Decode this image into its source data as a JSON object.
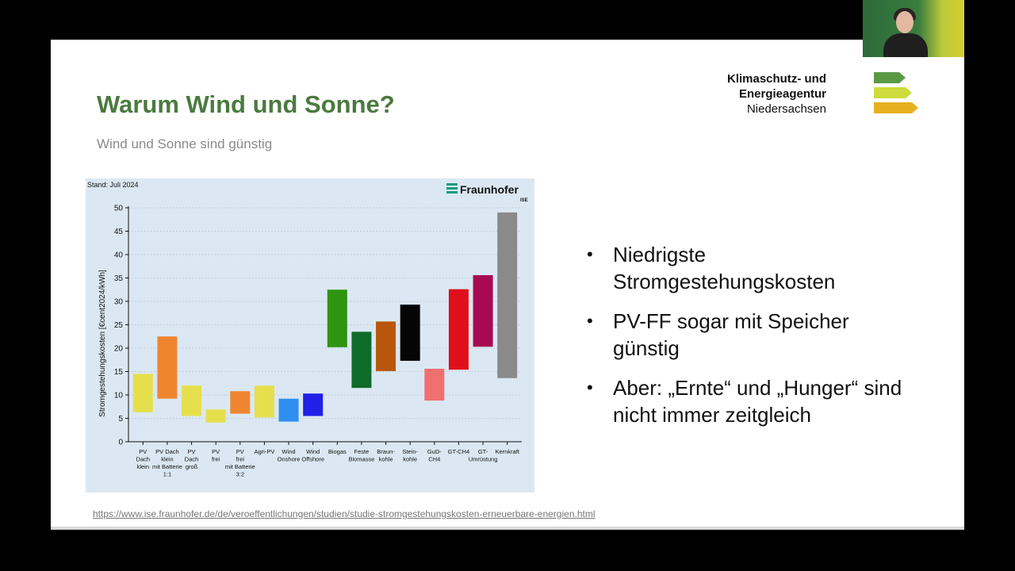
{
  "slide": {
    "title": "Warum Wind und Sonne?",
    "subtitle": "Wind und Sonne sind günstig",
    "logo": {
      "line1": "Klimaschutz- und",
      "line2": "Energieagentur",
      "line3": "Niedersachsen",
      "arrow_colors": [
        "#5a9a47",
        "#cddc3a",
        "#e6b020"
      ]
    },
    "bullets": [
      "Niedrigste Stromgestehungskosten",
      "PV-FF sogar mit Speicher günstig",
      "Aber: „Ernte“ und „Hunger“ sind nicht immer zeitgleich"
    ],
    "source_link": "https://www.ise.fraunhofer.de/de/veroeffentlichungen/studien/studie-stromgestehungskosten-erneuerbare-energien.html"
  },
  "video_thumbnail": {
    "icon": "participant-video-icon"
  },
  "chart_data": {
    "type": "bar",
    "stand": "Stand: Juli 2024",
    "brand": "Fraunhofer",
    "brand_sub": "ISE",
    "ylabel": "Stromgestehungskosten [€cent2024/kWh]",
    "ylim": [
      0,
      50
    ],
    "yticks": [
      0,
      5,
      10,
      15,
      20,
      25,
      30,
      35,
      40,
      45,
      50
    ],
    "grid": true,
    "categories": [
      {
        "label": [
          "PV",
          "Dach",
          "klein"
        ],
        "low": 6.3,
        "high": 14.5,
        "color": "#e6df4c"
      },
      {
        "label": [
          "PV Dach",
          "klein",
          "mit Batterie",
          "1:1"
        ],
        "low": 9.2,
        "high": 22.5,
        "color": "#f08530"
      },
      {
        "label": [
          "PV",
          "Dach",
          "groß"
        ],
        "low": 5.5,
        "high": 12.0,
        "color": "#e6df4c"
      },
      {
        "label": [
          "PV",
          "frei"
        ],
        "low": 4.1,
        "high": 6.9,
        "color": "#e6df4c"
      },
      {
        "label": [
          "PV",
          "frei",
          "mit Batterie",
          "3:2"
        ],
        "low": 6.0,
        "high": 10.8,
        "color": "#f08530"
      },
      {
        "label": [
          "Agri-PV"
        ],
        "low": 5.2,
        "high": 12.0,
        "color": "#e6df4c"
      },
      {
        "label": [
          "Wind",
          "Onshore"
        ],
        "low": 4.3,
        "high": 9.2,
        "color": "#2f8ff0"
      },
      {
        "label": [
          "Wind",
          "Offshore"
        ],
        "low": 5.5,
        "high": 10.3,
        "color": "#2020e8"
      },
      {
        "label": [
          "Biogas"
        ],
        "low": 20.2,
        "high": 32.5,
        "color": "#2f9410"
      },
      {
        "label": [
          "Feste",
          "Biomasse"
        ],
        "low": 11.5,
        "high": 23.5,
        "color": "#0f6b2a"
      },
      {
        "label": [
          "Braun-",
          "kohle"
        ],
        "low": 15.1,
        "high": 25.7,
        "color": "#b8560e"
      },
      {
        "label": [
          "Stein-",
          "kohle"
        ],
        "low": 17.3,
        "high": 29.3,
        "color": "#050505"
      },
      {
        "label": [
          "GuD-",
          "CH4"
        ],
        "low": 8.8,
        "high": 15.6,
        "color": "#f07070"
      },
      {
        "label": [
          "GT-CH4"
        ],
        "low": 15.4,
        "high": 32.6,
        "color": "#e0101a"
      },
      {
        "label": [
          "GT-",
          "Umrüstung"
        ],
        "low": 20.3,
        "high": 35.6,
        "color": "#a80a52"
      },
      {
        "label": [
          "Kernkraft"
        ],
        "low": 13.6,
        "high": 49.0,
        "color": "#8a8a8a"
      }
    ]
  }
}
